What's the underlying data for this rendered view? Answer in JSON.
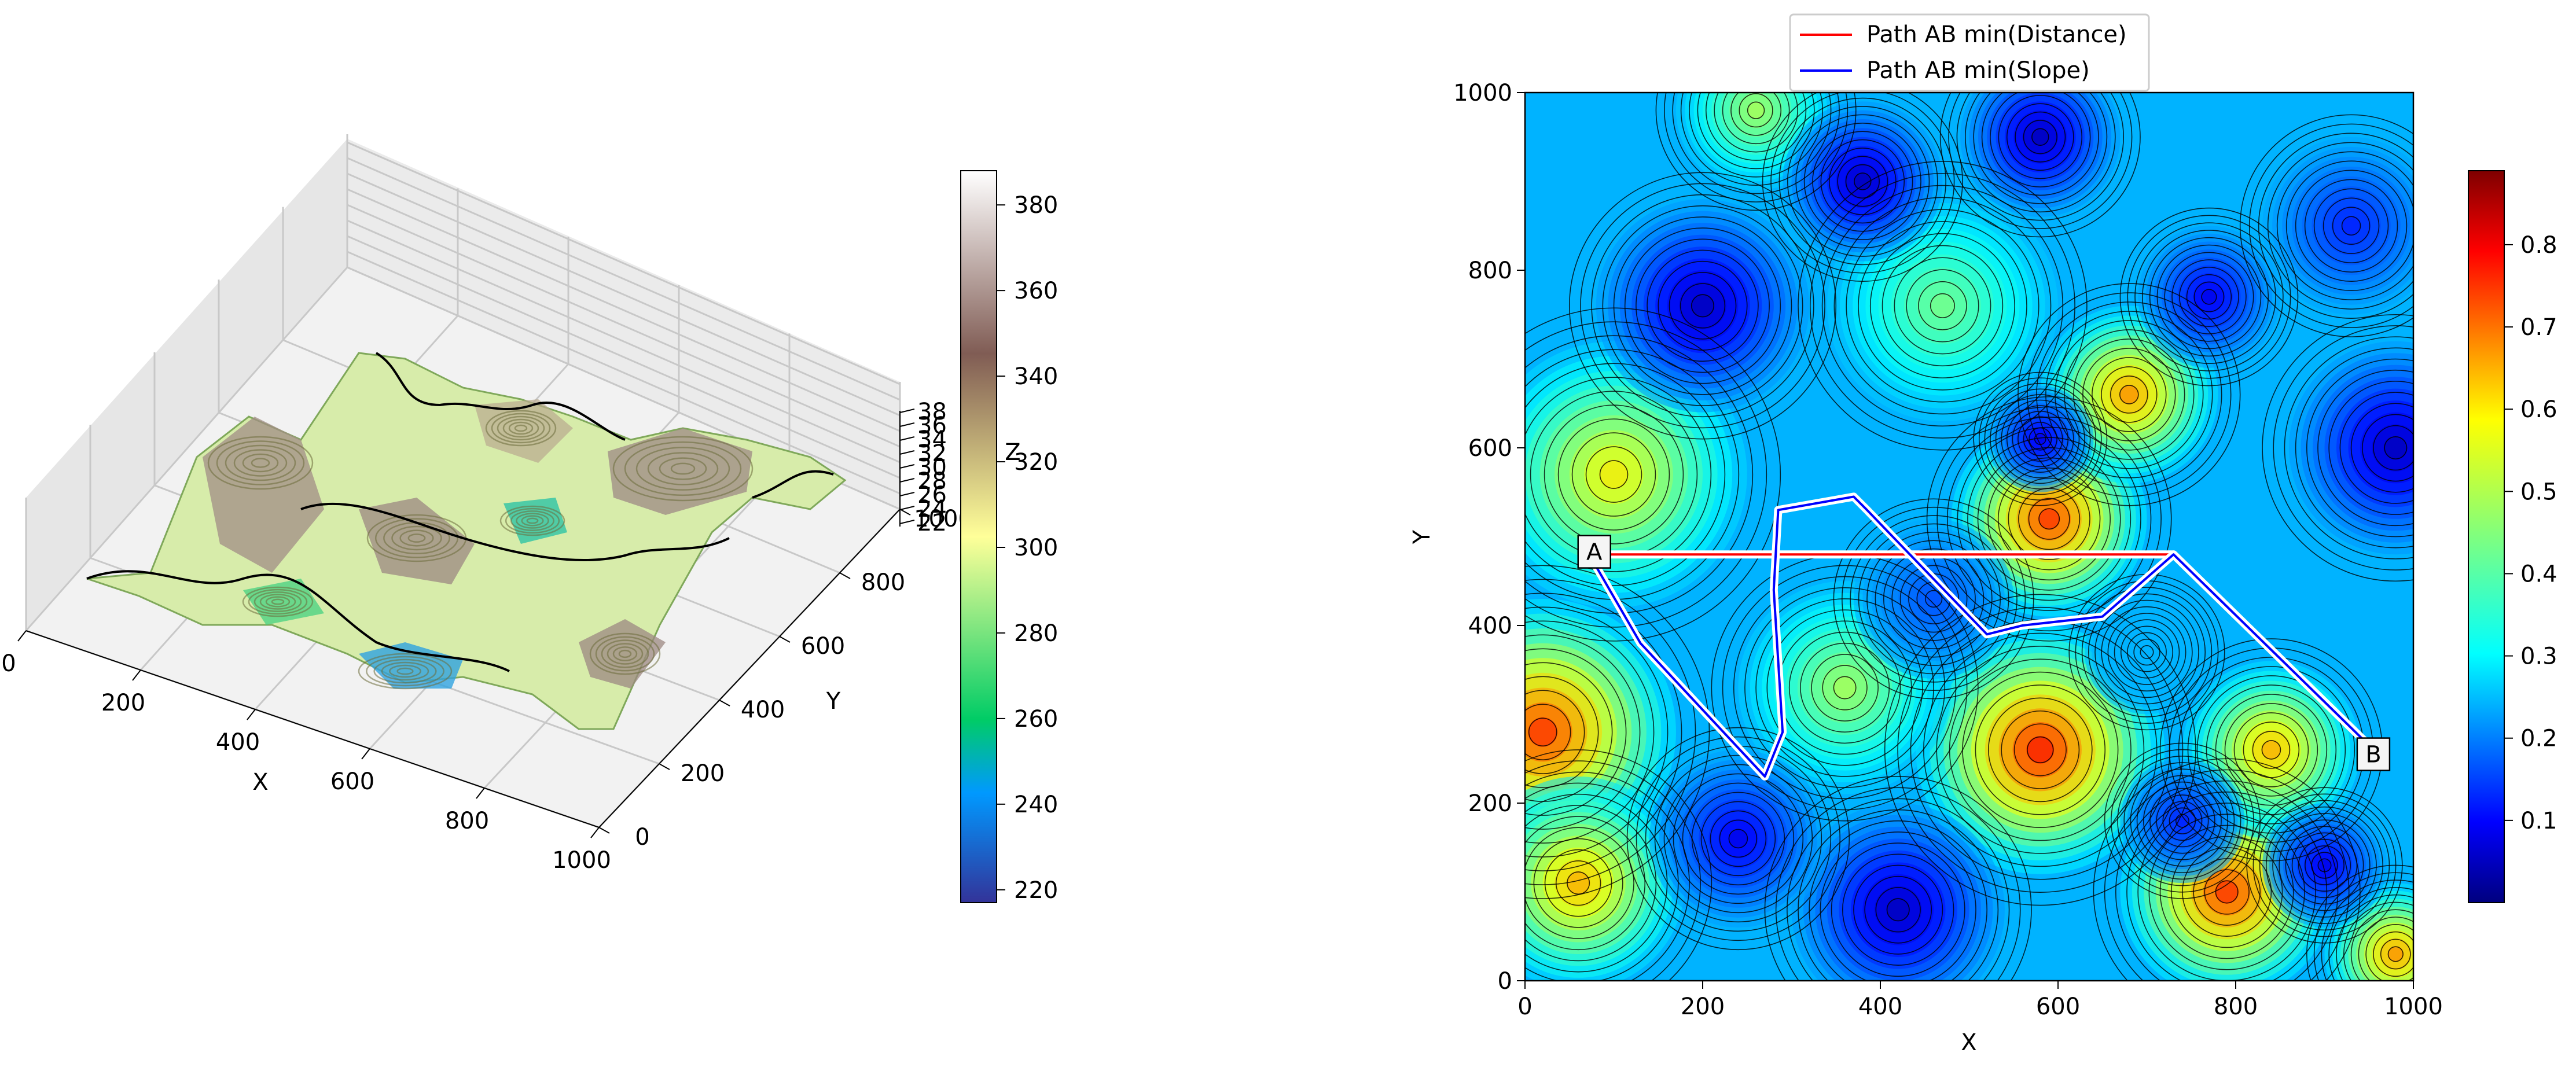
{
  "chart_data": [
    {
      "type": "surface3d",
      "xlabel": "X",
      "ylabel": "Y",
      "zlabel": "Z",
      "xlim": [
        0,
        1000
      ],
      "ylim": [
        0,
        1000
      ],
      "zlim": [
        220,
        380
      ],
      "x_ticks": [
        0,
        200,
        400,
        600,
        800,
        1000
      ],
      "y_ticks": [
        0,
        200,
        400,
        600,
        800,
        1000
      ],
      "z_ticks": [
        220,
        240,
        260,
        280,
        300,
        320,
        340,
        360,
        380
      ],
      "z_tick_labels": [
        "22",
        "24",
        "26",
        "28",
        "30",
        "32",
        "34",
        "36",
        "38"
      ],
      "colormap": "terrain",
      "colorbar": {
        "ticks": [
          220,
          240,
          260,
          280,
          300,
          320,
          340,
          360,
          380
        ],
        "range": [
          217,
          388
        ]
      },
      "grid": true
    },
    {
      "type": "heatmap",
      "xlabel": "X",
      "ylabel": "Y",
      "xlim": [
        0,
        1000
      ],
      "ylim": [
        0,
        1000
      ],
      "x_ticks": [
        0,
        200,
        400,
        600,
        800,
        1000
      ],
      "y_ticks": [
        0,
        200,
        400,
        600,
        800,
        1000
      ],
      "colormap": "jet",
      "colorbar": {
        "ticks": [
          0.1,
          0.2,
          0.3,
          0.4,
          0.5,
          0.6,
          0.7,
          0.8
        ],
        "range": [
          0.0,
          0.89
        ]
      },
      "legend": {
        "position": "top-center",
        "entries": [
          {
            "label": "Path AB min(Distance)",
            "color": "#ff0000"
          },
          {
            "label": "Path AB min(Slope)",
            "color": "#0000ff"
          }
        ]
      },
      "points": [
        {
          "label": "A",
          "x": 78,
          "y": 483
        },
        {
          "label": "B",
          "x": 955,
          "y": 255
        }
      ],
      "series": [
        {
          "name": "Path AB min(Distance)",
          "color": "#ff0000",
          "x": [
            78,
            730,
            945
          ],
          "y": [
            480,
            480,
            270
          ]
        },
        {
          "name": "Path AB min(Slope)",
          "color": "#0000ff",
          "x": [
            78,
            130,
            270,
            290,
            280,
            285,
            370,
            385,
            520,
            560,
            650,
            730,
            945
          ],
          "y": [
            470,
            380,
            230,
            280,
            440,
            530,
            545,
            530,
            390,
            400,
            410,
            480,
            270
          ]
        }
      ],
      "field_features": [
        {
          "x": 590,
          "y": 520,
          "v": 0.85,
          "r": 110
        },
        {
          "x": 680,
          "y": 660,
          "v": 0.75,
          "r": 100
        },
        {
          "x": 580,
          "y": 260,
          "v": 0.88,
          "r": 140
        },
        {
          "x": 790,
          "y": 100,
          "v": 0.85,
          "r": 120
        },
        {
          "x": 840,
          "y": 260,
          "v": 0.72,
          "r": 100
        },
        {
          "x": 20,
          "y": 280,
          "v": 0.85,
          "r": 150
        },
        {
          "x": 60,
          "y": 110,
          "v": 0.72,
          "r": 120
        },
        {
          "x": 100,
          "y": 570,
          "v": 0.65,
          "r": 150
        },
        {
          "x": 360,
          "y": 330,
          "v": 0.55,
          "r": 120
        },
        {
          "x": 470,
          "y": 760,
          "v": 0.5,
          "r": 130
        },
        {
          "x": 980,
          "y": 30,
          "v": 0.75,
          "r": 80
        },
        {
          "x": 260,
          "y": 980,
          "v": 0.55,
          "r": 90
        },
        {
          "x": 380,
          "y": 900,
          "v": 0.05,
          "r": 90
        },
        {
          "x": 580,
          "y": 950,
          "v": 0.05,
          "r": 90
        },
        {
          "x": 770,
          "y": 770,
          "v": 0.1,
          "r": 80
        },
        {
          "x": 580,
          "y": 610,
          "v": 0.1,
          "r": 60
        },
        {
          "x": 200,
          "y": 760,
          "v": 0.05,
          "r": 120
        },
        {
          "x": 740,
          "y": 180,
          "v": 0.15,
          "r": 70
        },
        {
          "x": 900,
          "y": 130,
          "v": 0.1,
          "r": 70
        },
        {
          "x": 420,
          "y": 80,
          "v": 0.05,
          "r": 120
        },
        {
          "x": 240,
          "y": 160,
          "v": 0.1,
          "r": 100
        },
        {
          "x": 980,
          "y": 600,
          "v": 0.05,
          "r": 120
        },
        {
          "x": 930,
          "y": 850,
          "v": 0.15,
          "r": 100
        },
        {
          "x": 460,
          "y": 430,
          "v": 0.2,
          "r": 90
        },
        {
          "x": 700,
          "y": 370,
          "v": 0.3,
          "r": 70
        }
      ]
    }
  ]
}
